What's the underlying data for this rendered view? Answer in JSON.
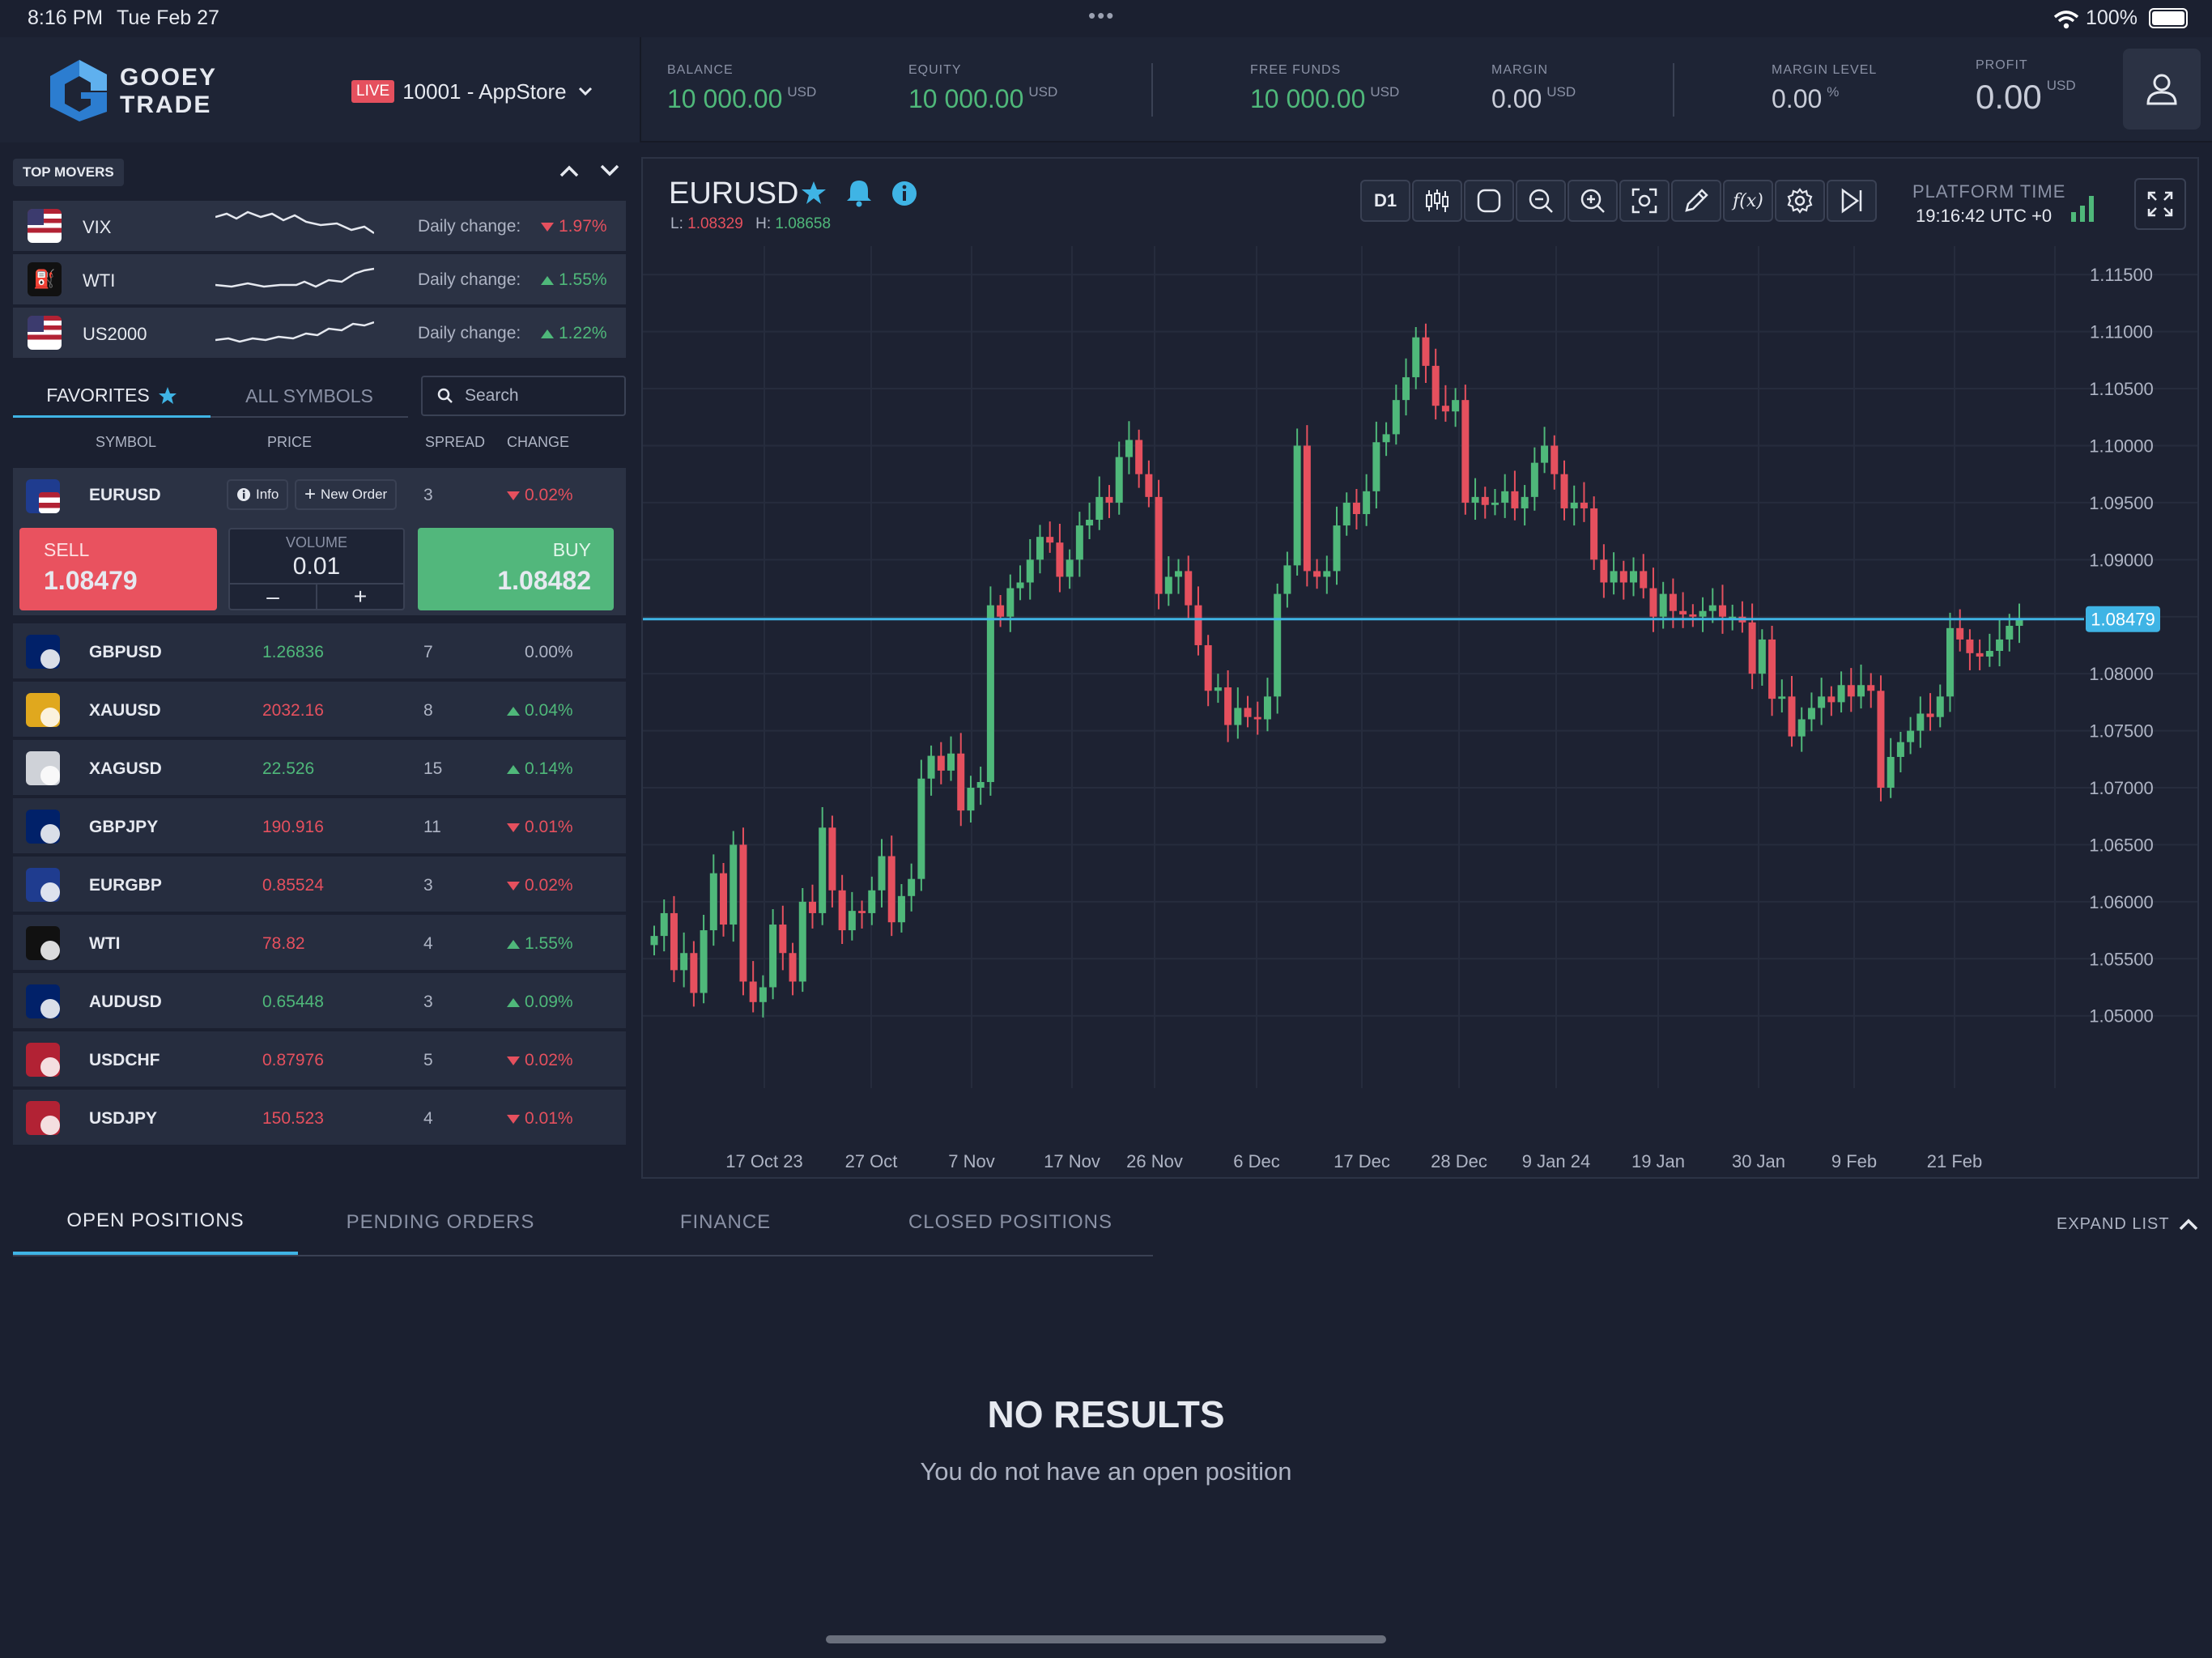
{
  "status": {
    "time": "8:16 PM",
    "date": "Tue Feb 27",
    "battery": "100%"
  },
  "brand": {
    "line1": "GOOEY",
    "line2": "TRADE"
  },
  "account": {
    "badge": "LIVE",
    "name": "10001 - AppStore"
  },
  "stats": [
    {
      "label": "BALANCE",
      "value": "10 000.00",
      "currency": "USD",
      "color": "green"
    },
    {
      "label": "EQUITY",
      "value": "10 000.00",
      "currency": "USD",
      "color": "green"
    },
    {
      "label": "FREE FUNDS",
      "value": "10 000.00",
      "currency": "USD",
      "color": "green"
    },
    {
      "label": "MARGIN",
      "value": "0.00",
      "currency": "USD",
      "color": "white"
    },
    {
      "label": "MARGIN LEVEL",
      "value": "0.00",
      "currency": "%",
      "color": "white"
    },
    {
      "label": "PROFIT",
      "value": "0.00",
      "currency": "USD",
      "color": "white"
    }
  ],
  "top_movers": {
    "title": "TOP MOVERS",
    "items": [
      {
        "symbol": "VIX",
        "label": "Daily change:",
        "change": "1.97%",
        "dir": "down"
      },
      {
        "symbol": "WTI",
        "label": "Daily change:",
        "change": "1.55%",
        "dir": "up"
      },
      {
        "symbol": "US2000",
        "label": "Daily change:",
        "change": "1.22%",
        "dir": "up"
      }
    ]
  },
  "tabs": {
    "favorites": "FAVORITES",
    "all": "ALL SYMBOLS",
    "search_placeholder": "Search"
  },
  "columns": {
    "symbol": "SYMBOL",
    "price": "PRICE",
    "spread": "SPREAD",
    "change": "CHANGE"
  },
  "selected": {
    "symbol": "EURUSD",
    "spread": "3",
    "change": "0.02%",
    "info": "Info",
    "new_order": "New Order",
    "sell_label": "SELL",
    "sell_price": "1.08479",
    "volume_label": "VOLUME",
    "volume": "0.01",
    "buy_label": "BUY",
    "buy_price": "1.08482"
  },
  "symbols": [
    {
      "symbol": "GBPUSD",
      "price": "1.26836",
      "price_color": "green",
      "spread": "7",
      "change": "0.00%",
      "dir": "none"
    },
    {
      "symbol": "XAUUSD",
      "price": "2032.16",
      "price_color": "red",
      "spread": "8",
      "change": "0.04%",
      "dir": "up"
    },
    {
      "symbol": "XAGUSD",
      "price": "22.526",
      "price_color": "green",
      "spread": "15",
      "change": "0.14%",
      "dir": "up"
    },
    {
      "symbol": "GBPJPY",
      "price": "190.916",
      "price_color": "red",
      "spread": "11",
      "change": "0.01%",
      "dir": "down"
    },
    {
      "symbol": "EURGBP",
      "price": "0.85524",
      "price_color": "red",
      "spread": "3",
      "change": "0.02%",
      "dir": "down"
    },
    {
      "symbol": "WTI",
      "price": "78.82",
      "price_color": "red",
      "spread": "4",
      "change": "1.55%",
      "dir": "up"
    },
    {
      "symbol": "AUDUSD",
      "price": "0.65448",
      "price_color": "green",
      "spread": "3",
      "change": "0.09%",
      "dir": "up"
    },
    {
      "symbol": "USDCHF",
      "price": "0.87976",
      "price_color": "red",
      "spread": "5",
      "change": "0.02%",
      "dir": "down"
    },
    {
      "symbol": "USDJPY",
      "price": "150.523",
      "price_color": "red",
      "spread": "4",
      "change": "0.01%",
      "dir": "down"
    }
  ],
  "chart_header": {
    "symbol": "EURUSD",
    "low_label": "L:",
    "low": "1.08329",
    "high_label": "H:",
    "high": "1.08658",
    "timeframe": "D1",
    "platform_time_label": "PLATFORM TIME",
    "platform_time": "19:16:42 UTC +0"
  },
  "chart_data": {
    "type": "candlestick",
    "ylim": [
      1.0465,
      1.1175
    ],
    "y_ticks": [
      "1.11500",
      "1.11000",
      "1.10500",
      "1.10000",
      "1.09500",
      "1.09000",
      "1.08500",
      "1.08000",
      "1.07500",
      "1.07000",
      "1.06500",
      "1.06000",
      "1.05500",
      "1.05000"
    ],
    "x_ticks": [
      "17 Oct 23",
      "27 Oct",
      "7 Nov",
      "17 Nov",
      "26 Nov",
      "6 Dec",
      "17 Dec",
      "28 Dec",
      "9 Jan 24",
      "19 Jan",
      "30 Jan",
      "9 Feb",
      "21 Feb"
    ],
    "current_price": "1.08479",
    "current_value": 1.08479,
    "closes": [
      1.057,
      1.059,
      1.054,
      1.0555,
      1.052,
      1.0575,
      1.0625,
      1.058,
      1.065,
      1.053,
      1.0512,
      1.0525,
      1.058,
      1.0555,
      1.053,
      1.06,
      1.059,
      1.0665,
      1.061,
      1.0575,
      1.0592,
      1.059,
      1.061,
      1.064,
      1.0582,
      1.0605,
      1.062,
      1.0708,
      1.0728,
      1.0715,
      1.073,
      1.068,
      1.07,
      1.0705,
      1.086,
      1.085,
      1.0875,
      1.088,
      1.09,
      1.092,
      1.0915,
      1.0885,
      1.09,
      1.093,
      1.0935,
      1.0955,
      1.095,
      1.099,
      1.1005,
      1.0975,
      1.0955,
      1.087,
      1.0885,
      1.089,
      1.086,
      1.0825,
      1.0785,
      1.0788,
      1.0755,
      1.077,
      1.0762,
      1.076,
      1.078,
      1.087,
      1.0895,
      1.1,
      1.089,
      1.0885,
      1.089,
      1.093,
      1.095,
      1.094,
      1.096,
      1.1003,
      1.101,
      1.104,
      1.106,
      1.1095,
      1.107,
      1.1035,
      1.103,
      1.104,
      1.095,
      1.0955,
      1.0948,
      1.095,
      1.096,
      1.0945,
      1.0955,
      1.0985,
      1.1,
      1.0975,
      1.0945,
      1.095,
      1.0945,
      1.09,
      1.088,
      1.089,
      1.088,
      1.089,
      1.0875,
      1.085,
      1.087,
      1.0855,
      1.0852,
      1.085,
      1.0855,
      1.086,
      1.085,
      1.085,
      1.0845,
      1.08,
      1.083,
      1.0778,
      1.078,
      1.0745,
      1.076,
      1.077,
      1.078,
      1.0775,
      1.079,
      1.078,
      1.079,
      1.0785,
      1.07,
      1.0727,
      1.074,
      1.075,
      1.0765,
      1.0762,
      1.078,
      1.084,
      1.083,
      1.0818,
      1.0815,
      1.082,
      1.083,
      1.0842,
      1.0848
    ]
  },
  "bottom_tabs": [
    "OPEN POSITIONS",
    "PENDING ORDERS",
    "FINANCE",
    "CLOSED POSITIONS"
  ],
  "expand_label": "EXPAND LIST",
  "empty": {
    "title": "NO RESULTS",
    "message": "You do not have an open position"
  },
  "colors": {
    "bg": "#1b2030",
    "up": "#4fb87a",
    "down": "#e5505e",
    "accent": "#3fb4e5",
    "sell": "#e9525f",
    "buy": "#52b77c"
  }
}
